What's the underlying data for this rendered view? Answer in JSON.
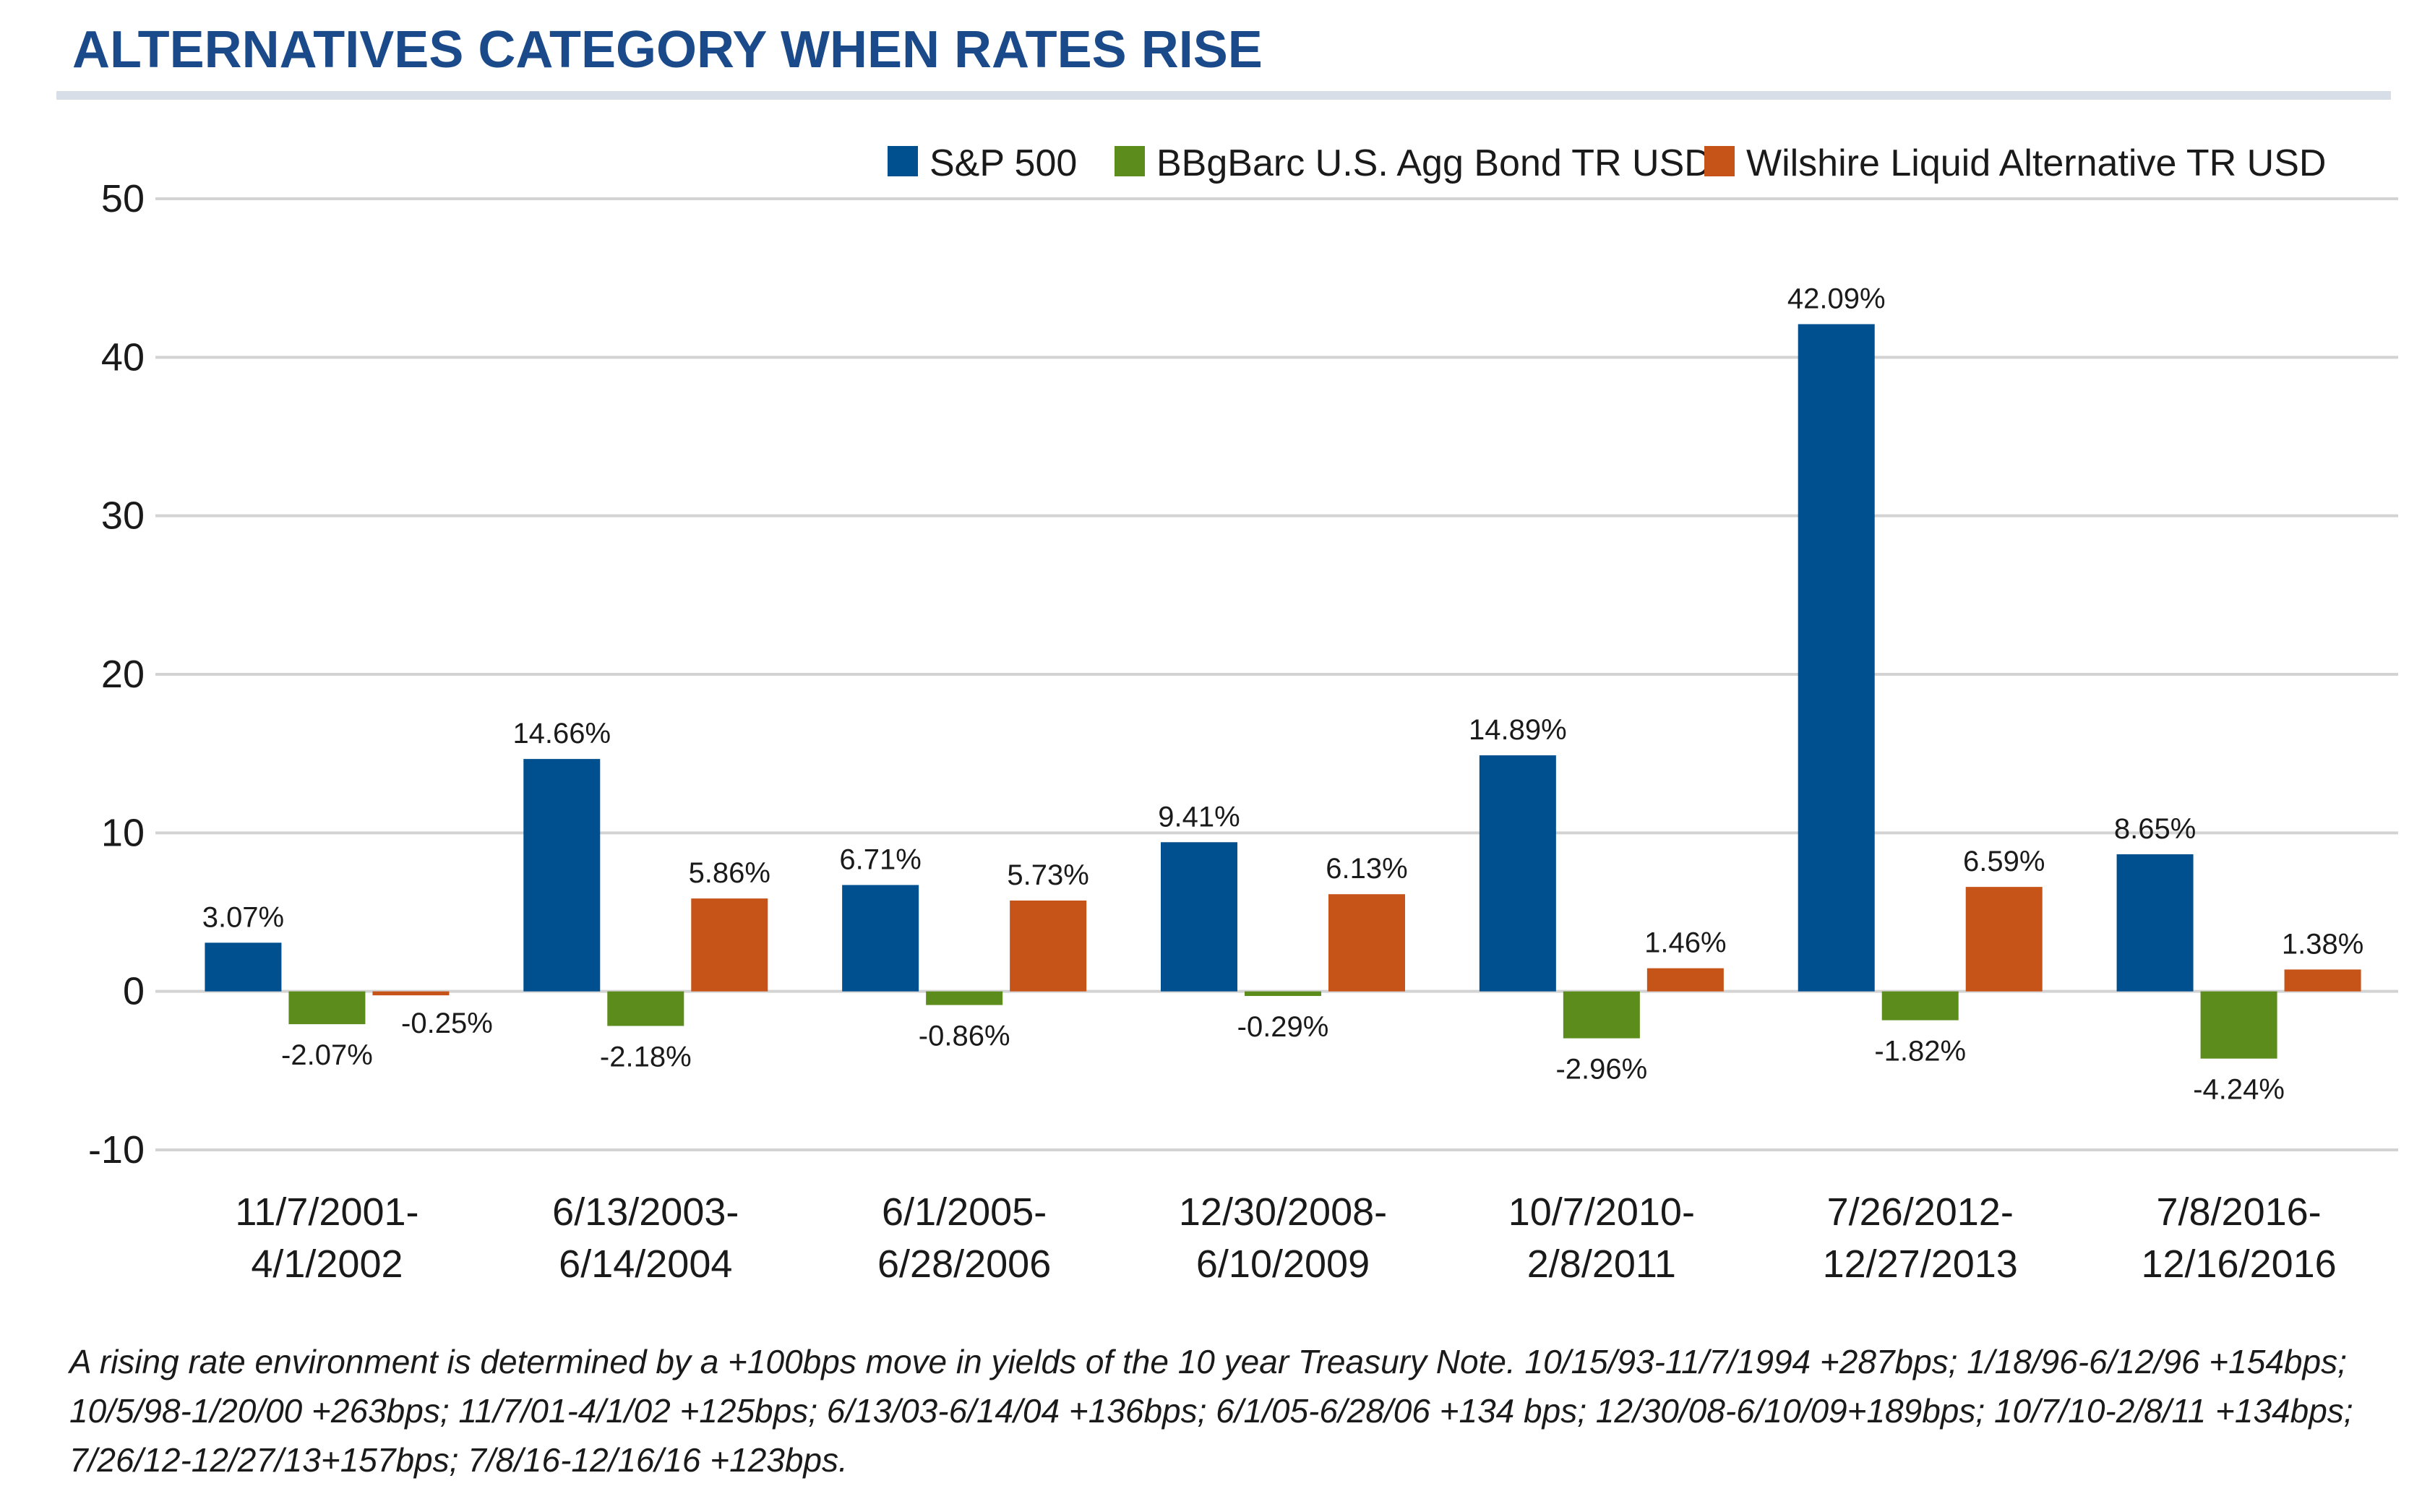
{
  "chart_data": {
    "type": "bar",
    "title": "ALTERNATIVES CATEGORY WHEN RATES RISE",
    "xlabel": "",
    "ylabel": "",
    "ylim": [
      -10,
      50
    ],
    "yticks": [
      "50",
      "40",
      "30",
      "20",
      "10",
      "0",
      "-10"
    ],
    "ytick_values": [
      50,
      40,
      30,
      20,
      10,
      0,
      -10
    ],
    "grid": true,
    "legend_position": "top-right",
    "categories": [
      [
        "11/7/2001-",
        "4/1/2002"
      ],
      [
        "6/13/2003-",
        "6/14/2004"
      ],
      [
        "6/1/2005-",
        "6/28/2006"
      ],
      [
        "12/30/2008-",
        "6/10/2009"
      ],
      [
        "10/7/2010-",
        "2/8/2011"
      ],
      [
        "7/26/2012-",
        "12/27/2013"
      ],
      [
        "7/8/2016-",
        "12/16/2016"
      ]
    ],
    "series": [
      {
        "name": "S&P 500",
        "color": "#004f8e",
        "values": [
          3.07,
          14.66,
          6.71,
          9.41,
          14.89,
          42.09,
          8.65
        ],
        "labels": [
          "3.07%",
          "14.66%",
          "6.71%",
          "9.41%",
          "14.89%",
          "42.09%",
          "8.65%"
        ]
      },
      {
        "name": "BBgBarc U.S. Agg Bond TR USD",
        "color": "#5c8c1c",
        "values": [
          -2.07,
          -2.18,
          -0.86,
          -0.29,
          -2.96,
          -1.82,
          -4.24
        ],
        "labels": [
          "-2.07%",
          "-2.18%",
          "-0.86%",
          "-0.29%",
          "-2.96%",
          "-1.82%",
          "-4.24%"
        ]
      },
      {
        "name": "Wilshire Liquid Alternative TR USD",
        "color": "#c65318",
        "values": [
          -0.25,
          5.86,
          5.73,
          6.13,
          1.46,
          6.59,
          1.38
        ],
        "labels": [
          "-0.25%",
          "5.86%",
          "5.73%",
          "6.13%",
          "1.46%",
          "6.59%",
          "1.38%"
        ]
      }
    ],
    "footnote": "A rising rate environment is determined by a +100bps move in yields of the 10 year Treasury Note. 10/15/93-11/7/1994 +287bps; 1/18/96-6/12/96 +154bps; 10/5/98-1/20/00 +263bps; 11/7/01-4/1/02 +125bps; 6/13/03-6/14/04 +136bps; 6/1/05-6/28/06 +134 bps; 12/30/08-6/10/09+189bps; 10/7/10-2/8/11 +134bps; 7/26/12-12/27/13+157bps; 7/8/16-12/16/16 +123bps."
  }
}
